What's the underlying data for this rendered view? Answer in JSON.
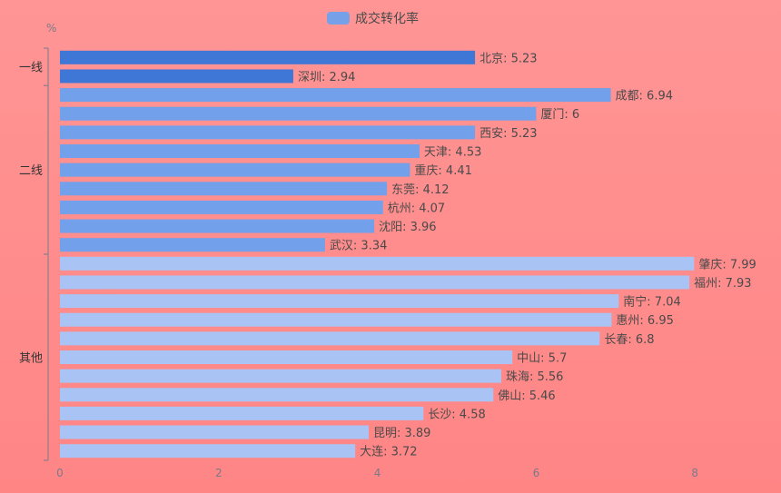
{
  "chart_data": {
    "type": "bar",
    "orientation": "horizontal",
    "legend": {
      "label": "成交转化率",
      "color": "#76a1e8",
      "position": "top-center"
    },
    "unit": "%",
    "xlim": [
      0,
      9
    ],
    "x_ticks": [
      0,
      2,
      4,
      6,
      8
    ],
    "groups": [
      {
        "name": "一线",
        "color": "#3f77d6",
        "start": 0,
        "end": 1
      },
      {
        "name": "二线",
        "color": "#72a0ea",
        "start": 2,
        "end": 10
      },
      {
        "name": "其他",
        "color": "#a9c4f4",
        "start": 11,
        "end": 21
      }
    ],
    "categories": [
      "北京",
      "深圳",
      "成都",
      "厦门",
      "西安",
      "天津",
      "重庆",
      "东莞",
      "杭州",
      "沈阳",
      "武汉",
      "肇庆",
      "福州",
      "南宁",
      "惠州",
      "长春",
      "中山",
      "珠海",
      "佛山",
      "长沙",
      "昆明",
      "大连"
    ],
    "values": [
      5.23,
      2.94,
      6.94,
      6,
      5.23,
      4.53,
      4.41,
      4.12,
      4.07,
      3.96,
      3.34,
      7.99,
      7.93,
      7.04,
      6.95,
      6.8,
      5.7,
      5.56,
      5.46,
      4.58,
      3.89,
      3.72
    ],
    "bar_labels": [
      "北京: 5.23",
      "深圳: 2.94",
      "成都: 6.94",
      "厦门: 6",
      "西安: 5.23",
      "天津: 4.53",
      "重庆: 4.41",
      "东莞: 4.12",
      "杭州: 4.07",
      "沈阳: 3.96",
      "武汉: 3.34",
      "肇庆: 7.99",
      "福州: 7.93",
      "南宁: 7.04",
      "惠州: 6.95",
      "长春: 6.8",
      "中山: 5.7",
      "珠海: 5.56",
      "佛山: 5.46",
      "长沙: 4.58",
      "昆明: 3.89",
      "大连: 3.72"
    ]
  }
}
